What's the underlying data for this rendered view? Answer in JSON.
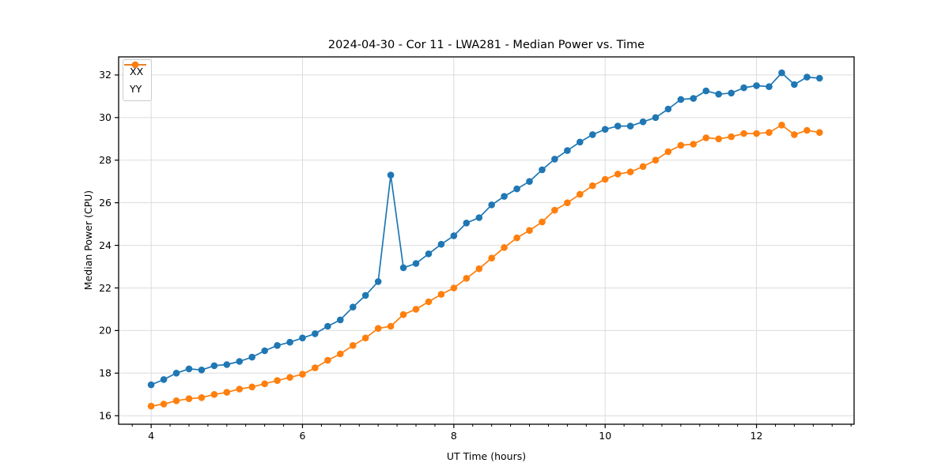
{
  "chart_data": {
    "type": "line",
    "title": "2024-04-30 - Cor 11 - LWA281 - Median Power vs. Time",
    "xlabel": "UT Time (hours)",
    "ylabel": "Median Power (CPU)",
    "xlim": [
      3.57,
      13.29
    ],
    "ylim": [
      15.6,
      32.85
    ],
    "x_major_ticks": [
      4,
      6,
      8,
      10,
      12
    ],
    "x_minor_step": 0.25,
    "y_major_ticks": [
      16,
      18,
      20,
      22,
      24,
      26,
      28,
      30,
      32
    ],
    "grid": true,
    "legend_position": "upper left",
    "x_start": 4.0,
    "x_step": 0.1666667,
    "series": [
      {
        "name": "XX",
        "color": "#1f77b4",
        "values": [
          17.45,
          17.7,
          18.0,
          18.2,
          18.15,
          18.35,
          18.4,
          18.55,
          18.75,
          19.05,
          19.3,
          19.45,
          19.65,
          19.85,
          20.2,
          20.5,
          21.1,
          21.65,
          22.3,
          27.3,
          22.95,
          23.15,
          23.6,
          24.05,
          24.45,
          25.05,
          25.3,
          25.9,
          26.3,
          26.65,
          27.0,
          27.55,
          28.05,
          28.45,
          28.85,
          29.2,
          29.45,
          29.6,
          29.6,
          29.8,
          30.0,
          30.4,
          30.85,
          30.9,
          31.25,
          31.1,
          31.15,
          31.4,
          31.5,
          31.45,
          32.1,
          31.55,
          31.9,
          31.85
        ]
      },
      {
        "name": "YY",
        "color": "#ff7f0e",
        "values": [
          16.45,
          16.55,
          16.7,
          16.8,
          16.85,
          17.0,
          17.1,
          17.25,
          17.35,
          17.5,
          17.65,
          17.8,
          17.95,
          18.25,
          18.6,
          18.9,
          19.3,
          19.65,
          20.1,
          20.2,
          20.75,
          21.0,
          21.35,
          21.7,
          22.0,
          22.45,
          22.9,
          23.4,
          23.9,
          24.35,
          24.7,
          25.1,
          25.65,
          26.0,
          26.4,
          26.8,
          27.1,
          27.35,
          27.45,
          27.7,
          28.0,
          28.4,
          28.7,
          28.75,
          29.05,
          29.0,
          29.1,
          29.25,
          29.25,
          29.3,
          29.65,
          29.2,
          29.4,
          29.3
        ]
      }
    ],
    "annotations": {
      "spike": "XX spike to 27.3 at UT 7.17"
    }
  }
}
